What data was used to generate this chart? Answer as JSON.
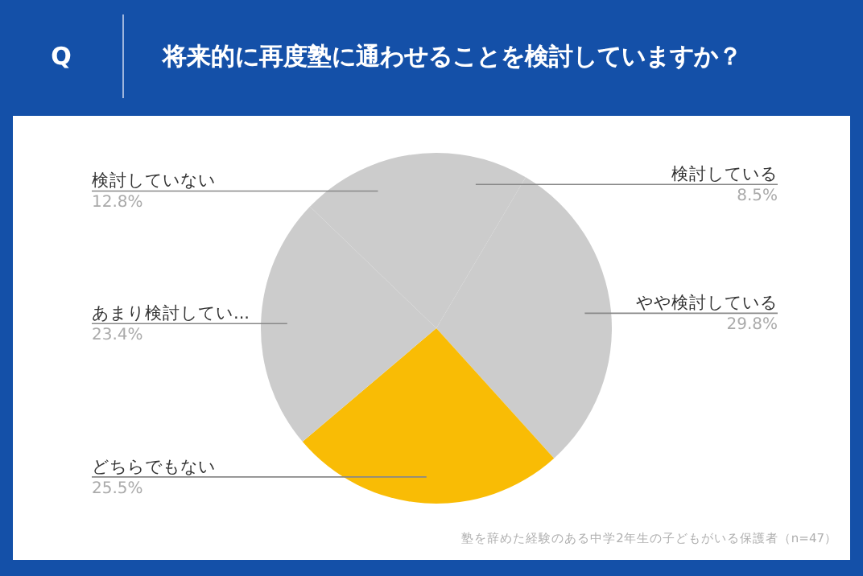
{
  "chart_data": {
    "type": "pie",
    "title": "将来的に再度塾に通わせることを検討していますか？",
    "subtitle": "Q",
    "categories": [
      "検討している",
      "やや検討している",
      "どちらでもない",
      "あまり検討してい...",
      "検討していない"
    ],
    "values": [
      8.5,
      29.8,
      25.5,
      23.4,
      12.8
    ],
    "value_labels": [
      "8.5%",
      "29.8%",
      "25.5%",
      "23.4%",
      "12.8%"
    ],
    "colors": [
      "#cccccc",
      "#cccccc",
      "#f9bc05",
      "#cccccc",
      "#cccccc"
    ],
    "annotations": [
      "塾を辞めた経験のある中学2年生の子どもがいる保護者（n=47）"
    ]
  }
}
